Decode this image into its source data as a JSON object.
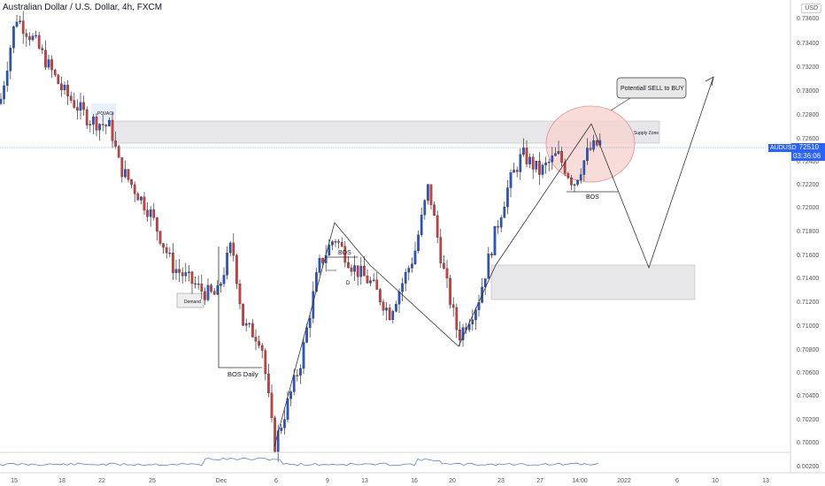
{
  "header": {
    "title": "Australian Dollar / U.S. Dollar, 4h, FXCM",
    "currency": "USD"
  },
  "colors": {
    "up": "#2157d3",
    "down": "#d63a3a",
    "wick": "#333333",
    "zone": "#e7e7ea",
    "accent": "#2962ff",
    "circle": "#f7d6d3"
  },
  "price_axis": {
    "ticks": [
      "0.73600",
      "0.73400",
      "0.73200",
      "0.73000",
      "0.72800",
      "0.72600",
      "0.72400",
      "0.72200",
      "0.72000",
      "0.71800",
      "0.71600",
      "0.71400",
      "0.71200",
      "0.71000",
      "0.70800",
      "0.70600",
      "0.70400",
      "0.70200",
      "0.70000",
      "0.00200"
    ],
    "current_symbol": "AUDUSD",
    "current_price": "0.72510",
    "countdown": "03:36:06"
  },
  "time_axis": {
    "labels": [
      "15",
      "18",
      "22",
      "25",
      "Dec",
      "6",
      "9",
      "13",
      "16",
      "20",
      "23",
      "27",
      "14:00",
      "2022",
      "6",
      "10",
      "13"
    ]
  },
  "annotations": {
    "poi": "POI/AOI",
    "supply": "Supply Zone",
    "demand": "Demand",
    "bos_daily": "BOS Daily",
    "bos1": "BOS",
    "bos2": "BOS",
    "d_marker": "D",
    "callout": "Potentiall SELL to BUY"
  },
  "chart_data": {
    "type": "candlestick",
    "symbol": "AUDUSD",
    "timeframe": "4h",
    "ylim": [
      0.6992,
      0.7376
    ],
    "x_ticks": [
      "15",
      "18",
      "22",
      "25",
      "Dec",
      "6",
      "9",
      "13",
      "16",
      "20",
      "23",
      "27",
      "14:00",
      "2022",
      "6",
      "10",
      "13"
    ],
    "price_path_keypoints": [
      {
        "label": "start",
        "price": 0.729
      },
      {
        "label": "high",
        "price": 0.7365
      },
      {
        "label": "POI/AOI",
        "price": 0.727
      },
      {
        "label": "Demand",
        "price": 0.7125
      },
      {
        "label": "low 6",
        "price": 0.6995
      },
      {
        "label": "BOS high",
        "price": 0.7185
      },
      {
        "label": "low 20",
        "price": 0.7085
      },
      {
        "label": "high 23",
        "price": 0.724
      },
      {
        "label": "current",
        "price": 0.7251
      }
    ],
    "zones": [
      {
        "name": "Supply Zone",
        "top": 0.7272,
        "bottom": 0.7253
      },
      {
        "name": "Demand",
        "top": 0.715,
        "bottom": 0.7122
      }
    ],
    "projection": [
      0.7272,
      0.7148,
      0.731
    ],
    "current_price": 0.7251
  }
}
